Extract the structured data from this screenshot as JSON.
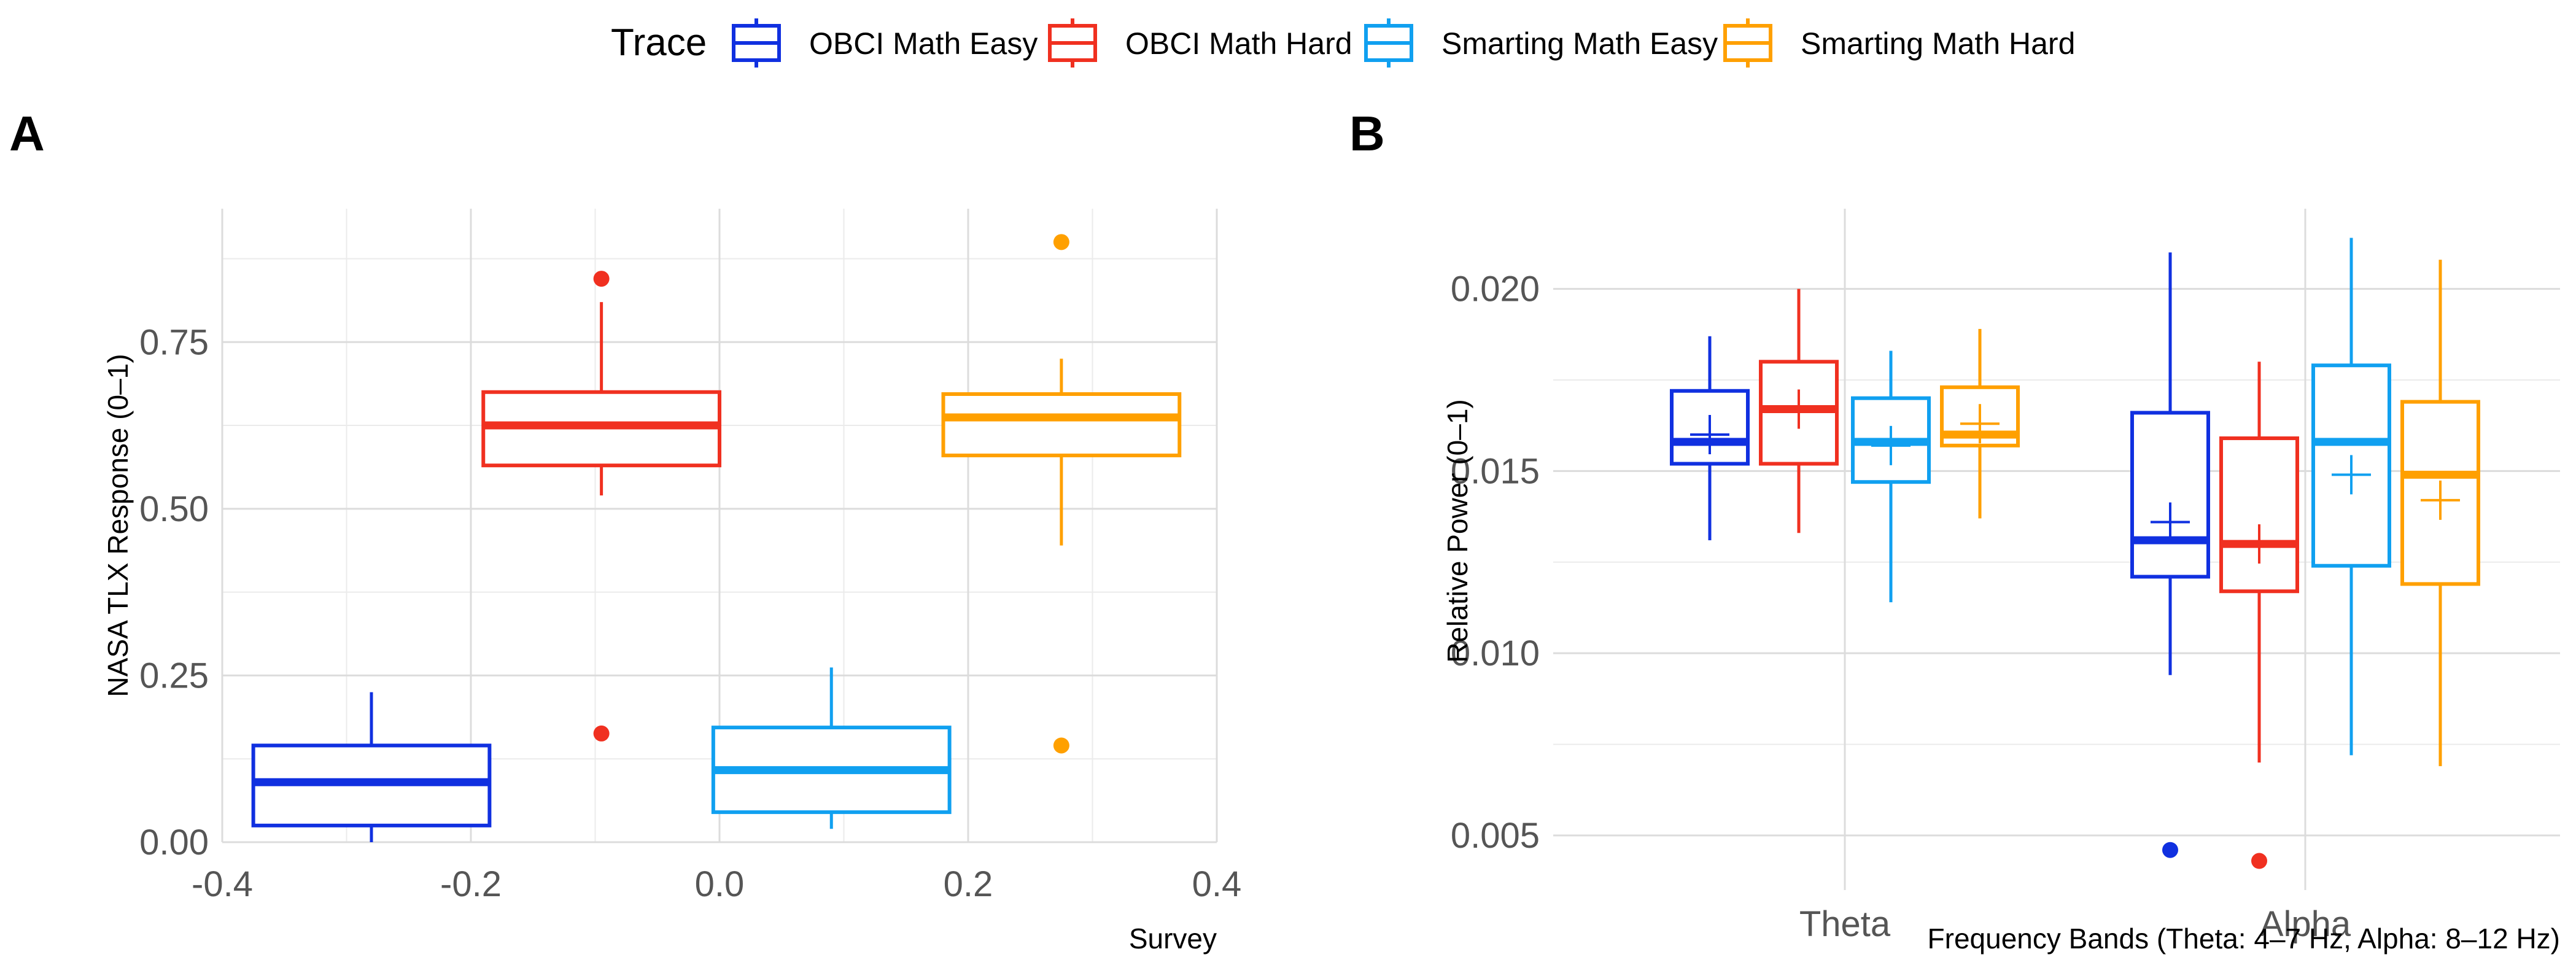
{
  "legend": {
    "title": "Trace",
    "items": [
      {
        "label": "OBCI Math Easy",
        "color": "#1030e0"
      },
      {
        "label": "OBCI Math Hard",
        "color": "#f03020"
      },
      {
        "label": "Smarting Math Easy",
        "color": "#10a0f0"
      },
      {
        "label": "Smarting Math Hard",
        "color": "#ffa000"
      }
    ]
  },
  "chart_data": [
    {
      "panel": "A",
      "type": "box",
      "orientation": "vertical",
      "xlabel": "Survey",
      "ylabel": "NASA TLX Response (0–1)",
      "xlim": [
        -0.4,
        0.4
      ],
      "ylim": [
        0,
        0.95
      ],
      "x_ticks": [
        -0.4,
        -0.2,
        0.0,
        0.2,
        0.4
      ],
      "x_tick_labels": [
        "-0.4",
        "-0.2",
        "0.0",
        "0.2",
        "0.4"
      ],
      "y_ticks": [
        0,
        0.25,
        0.5,
        0.75
      ],
      "y_tick_labels": [
        "0.00",
        "0.25",
        "0.50",
        "0.75"
      ],
      "grid": true,
      "boxes": [
        {
          "series": "OBCI Math Easy",
          "color": "#1030e0",
          "center": -0.28,
          "width": 0.19,
          "whisker_low": 0.0,
          "q1": 0.025,
          "median": 0.09,
          "q3": 0.145,
          "whisker_high": 0.225,
          "outliers": []
        },
        {
          "series": "OBCI Math Hard",
          "color": "#f03020",
          "center": -0.095,
          "width": 0.19,
          "whisker_low": 0.52,
          "q1": 0.565,
          "median": 0.625,
          "q3": 0.675,
          "whisker_high": 0.81,
          "outliers": [
            0.845,
            0.163
          ]
        },
        {
          "series": "Smarting Math Easy",
          "color": "#10a0f0",
          "center": 0.09,
          "width": 0.19,
          "whisker_low": 0.02,
          "q1": 0.045,
          "median": 0.108,
          "q3": 0.172,
          "whisker_high": 0.262,
          "outliers": []
        },
        {
          "series": "Smarting Math Hard",
          "color": "#ffa000",
          "center": 0.275,
          "width": 0.19,
          "whisker_low": 0.445,
          "q1": 0.58,
          "median": 0.637,
          "q3": 0.672,
          "whisker_high": 0.725,
          "outliers": [
            0.9,
            0.145
          ]
        }
      ]
    },
    {
      "panel": "B",
      "type": "box",
      "orientation": "vertical",
      "xlabel": "Frequency Bands (Theta: 4–7 Hz, Alpha: 8–12 Hz)",
      "ylabel": "Relative Power (0–1)",
      "categories": [
        "Theta",
        "Alpha"
      ],
      "ylim": [
        0.0035,
        0.0222
      ],
      "y_ticks": [
        0.005,
        0.01,
        0.015,
        0.02
      ],
      "y_tick_labels": [
        "0.005",
        "0.010",
        "0.015",
        "0.020"
      ],
      "grid": true,
      "series": [
        {
          "name": "OBCI Math Easy",
          "color": "#1030e0",
          "boxes": [
            {
              "category": "Theta",
              "whisker_low": 0.0131,
              "q1": 0.0152,
              "median": 0.0158,
              "q3": 0.0172,
              "whisker_high": 0.0187,
              "mean": 0.016,
              "outliers": []
            },
            {
              "category": "Alpha",
              "whisker_low": 0.0094,
              "q1": 0.0121,
              "median": 0.0131,
              "q3": 0.0166,
              "whisker_high": 0.021,
              "mean": 0.0136,
              "outliers": [
                0.0046
              ]
            }
          ]
        },
        {
          "name": "OBCI Math Hard",
          "color": "#f03020",
          "boxes": [
            {
              "category": "Theta",
              "whisker_low": 0.0133,
              "q1": 0.0152,
              "median": 0.0167,
              "q3": 0.018,
              "whisker_high": 0.02,
              "mean": 0.0167,
              "outliers": []
            },
            {
              "category": "Alpha",
              "whisker_low": 0.007,
              "q1": 0.0117,
              "median": 0.013,
              "q3": 0.0159,
              "whisker_high": 0.018,
              "mean": 0.013,
              "outliers": [
                0.0043
              ]
            }
          ]
        },
        {
          "name": "Smarting Math Easy",
          "color": "#10a0f0",
          "boxes": [
            {
              "category": "Theta",
              "whisker_low": 0.0114,
              "q1": 0.0147,
              "median": 0.0158,
              "q3": 0.017,
              "whisker_high": 0.0183,
              "mean": 0.0157,
              "outliers": []
            },
            {
              "category": "Alpha",
              "whisker_low": 0.0072,
              "q1": 0.0124,
              "median": 0.0158,
              "q3": 0.0179,
              "whisker_high": 0.0214,
              "mean": 0.0149,
              "outliers": []
            }
          ]
        },
        {
          "name": "Smarting Math Hard",
          "color": "#ffa000",
          "boxes": [
            {
              "category": "Theta",
              "whisker_low": 0.0137,
              "q1": 0.0157,
              "median": 0.016,
              "q3": 0.0173,
              "whisker_high": 0.0189,
              "mean": 0.0163,
              "outliers": []
            },
            {
              "category": "Alpha",
              "whisker_low": 0.0069,
              "q1": 0.0119,
              "median": 0.0149,
              "q3": 0.0169,
              "whisker_high": 0.0208,
              "mean": 0.0142,
              "outliers": []
            }
          ]
        }
      ]
    }
  ]
}
